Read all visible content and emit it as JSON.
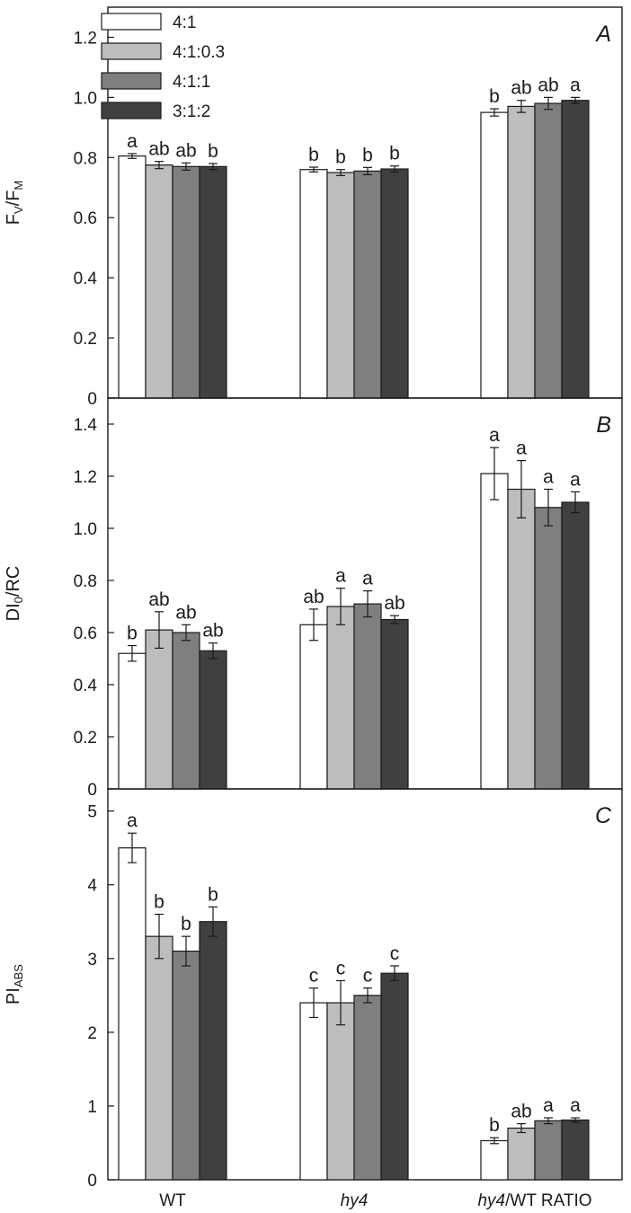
{
  "colors": {
    "4:1": "#ffffff",
    "4:1:0.3": "#bdbdbd",
    "4:1:1": "#7f7f7f",
    "3:1:2": "#404040",
    "stroke": "#1a1a1a"
  },
  "categories": [
    {
      "italic": "",
      "rest": "WT"
    },
    {
      "italic": "hy4",
      "rest": ""
    },
    {
      "italic": "hy4",
      "rest": "/WT RATIO"
    }
  ],
  "legend": [
    "4:1",
    "4:1:0.3",
    "4:1:1",
    "3:1:2"
  ],
  "chart_data": [
    {
      "type": "bar",
      "panel_label": "A",
      "ylabel": {
        "main": "F",
        "sub1": "V",
        "mid": "/F",
        "sub2": "M"
      },
      "ylim": [
        0,
        1.3
      ],
      "yticks": [
        0,
        0.2,
        0.4,
        0.6,
        0.8,
        1.0,
        1.2
      ],
      "ytick_labels": [
        "0",
        "0.2",
        "0.4",
        "0.6",
        "0.8",
        "1.0",
        "1.2"
      ],
      "categories": [
        "WT",
        "hy4",
        "hy4/WT RATIO"
      ],
      "legend_position": "top-left",
      "series": [
        {
          "name": "4:1",
          "values": [
            0.805,
            0.76,
            0.95
          ],
          "errors": [
            0.008,
            0.008,
            0.012
          ],
          "letters": [
            "a",
            "b",
            "b"
          ]
        },
        {
          "name": "4:1:0.3",
          "values": [
            0.775,
            0.75,
            0.97
          ],
          "errors": [
            0.012,
            0.01,
            0.02
          ],
          "letters": [
            "ab",
            "b",
            "ab"
          ]
        },
        {
          "name": "4:1:1",
          "values": [
            0.77,
            0.755,
            0.98
          ],
          "errors": [
            0.012,
            0.012,
            0.02
          ],
          "letters": [
            "ab",
            "b",
            "ab"
          ]
        },
        {
          "name": "3:1:2",
          "values": [
            0.77,
            0.762,
            0.99
          ],
          "errors": [
            0.01,
            0.01,
            0.01
          ],
          "letters": [
            "b",
            "b",
            "a"
          ]
        }
      ]
    },
    {
      "type": "bar",
      "panel_label": "B",
      "ylabel": {
        "main": "DI",
        "sub1": "0",
        "mid": "/RC",
        "sub2": ""
      },
      "ylim": [
        0,
        1.5
      ],
      "yticks": [
        0,
        0.2,
        0.4,
        0.6,
        0.8,
        1.0,
        1.2,
        1.4
      ],
      "ytick_labels": [
        "0",
        "0.2",
        "0.4",
        "0.6",
        "0.8",
        "1.0",
        "1.2",
        "1.4"
      ],
      "categories": [
        "WT",
        "hy4",
        "hy4/WT RATIO"
      ],
      "series": [
        {
          "name": "4:1",
          "values": [
            0.52,
            0.63,
            1.21
          ],
          "errors": [
            0.03,
            0.06,
            0.1
          ],
          "letters": [
            "b",
            "ab",
            "a"
          ]
        },
        {
          "name": "4:1:0.3",
          "values": [
            0.61,
            0.7,
            1.15
          ],
          "errors": [
            0.07,
            0.07,
            0.11
          ],
          "letters": [
            "ab",
            "a",
            "a"
          ]
        },
        {
          "name": "4:1:1",
          "values": [
            0.6,
            0.71,
            1.08
          ],
          "errors": [
            0.03,
            0.05,
            0.07
          ],
          "letters": [
            "ab",
            "a",
            "a"
          ]
        },
        {
          "name": "3:1:2",
          "values": [
            0.53,
            0.65,
            1.1
          ],
          "errors": [
            0.03,
            0.015,
            0.04
          ],
          "letters": [
            "ab",
            "ab",
            "a"
          ]
        }
      ]
    },
    {
      "type": "bar",
      "panel_label": "C",
      "ylabel": {
        "main": "PI",
        "sub1": "ABS",
        "mid": "",
        "sub2": ""
      },
      "ylim": [
        0,
        5.3
      ],
      "yticks": [
        0,
        1,
        2,
        3,
        4,
        5
      ],
      "ytick_labels": [
        "0",
        "1",
        "2",
        "3",
        "4",
        "5"
      ],
      "categories": [
        "WT",
        "hy4",
        "hy4/WT RATIO"
      ],
      "series": [
        {
          "name": "4:1",
          "values": [
            4.5,
            2.4,
            0.53
          ],
          "errors": [
            0.2,
            0.2,
            0.04
          ],
          "letters": [
            "a",
            "c",
            "b"
          ]
        },
        {
          "name": "4:1:0.3",
          "values": [
            3.3,
            2.4,
            0.7
          ],
          "errors": [
            0.3,
            0.3,
            0.06
          ],
          "letters": [
            "b",
            "c",
            "ab"
          ]
        },
        {
          "name": "4:1:1",
          "values": [
            3.1,
            2.5,
            0.8
          ],
          "errors": [
            0.2,
            0.1,
            0.04
          ],
          "letters": [
            "b",
            "c",
            "a"
          ]
        },
        {
          "name": "3:1:2",
          "values": [
            3.5,
            2.8,
            0.81
          ],
          "errors": [
            0.2,
            0.1,
            0.03
          ],
          "letters": [
            "b",
            "c",
            "a"
          ]
        }
      ]
    }
  ]
}
